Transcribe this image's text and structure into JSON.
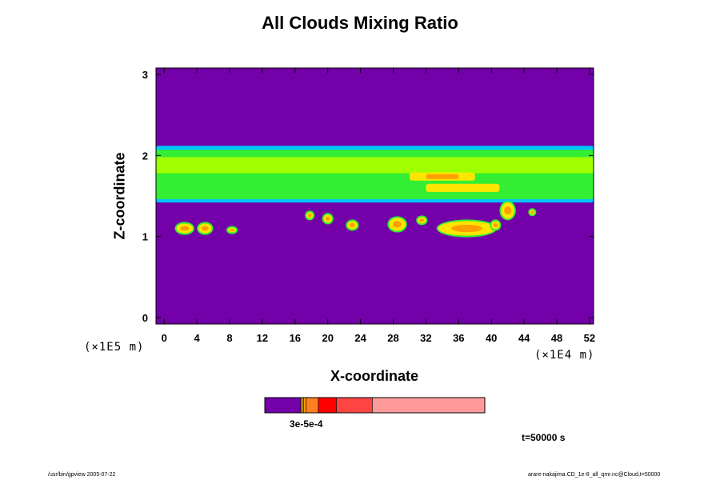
{
  "chart_data": {
    "type": "heatmap",
    "title": "All Clouds Mixing Ratio",
    "xlabel": "X-coordinate",
    "ylabel": "Z-coordinate",
    "x_unit": "(×1E4 m)",
    "y_unit": "(×1E5 m)",
    "xlim": [
      -1,
      52.5
    ],
    "ylim": [
      -0.08,
      3.08
    ],
    "x_ticks": [
      0,
      4,
      8,
      12,
      16,
      20,
      24,
      28,
      32,
      36,
      40,
      44,
      48,
      52
    ],
    "y_ticks": [
      0,
      1,
      2,
      3
    ],
    "grid": false,
    "background_color": "#7300a8",
    "cloud_layer": {
      "z_bottom": 1.45,
      "z_top": 2.1,
      "color": "#33ee33"
    },
    "regions": [
      {
        "level": "low",
        "color": "#00c4ff",
        "x": [
          -1,
          52.5
        ],
        "z": [
          1.42,
          2.12
        ]
      },
      {
        "level": "mid",
        "color": "#33ee33",
        "x": [
          -1,
          52.5
        ],
        "z": [
          1.46,
          2.07
        ]
      },
      {
        "level": "mid-high",
        "color": "#a0ff00",
        "x": [
          -1,
          52.5
        ],
        "z": [
          1.78,
          1.98
        ]
      },
      {
        "level": "high",
        "color": "#ffe600",
        "x": [
          30,
          38
        ],
        "z": [
          1.69,
          1.79
        ]
      },
      {
        "level": "high",
        "color": "#ffe600",
        "x": [
          32,
          41
        ],
        "z": [
          1.55,
          1.65
        ]
      },
      {
        "level": "highest",
        "color": "#ff9f00",
        "x": [
          32,
          36
        ],
        "z": [
          1.71,
          1.77
        ]
      }
    ],
    "blobs": [
      {
        "x": 2.5,
        "z": 1.1,
        "rx": 1.0,
        "rz": 0.06
      },
      {
        "x": 5.0,
        "z": 1.1,
        "rx": 0.8,
        "rz": 0.06
      },
      {
        "x": 8.3,
        "z": 1.08,
        "rx": 0.5,
        "rz": 0.03
      },
      {
        "x": 17.8,
        "z": 1.26,
        "rx": 0.4,
        "rz": 0.04
      },
      {
        "x": 20.0,
        "z": 1.22,
        "rx": 0.5,
        "rz": 0.05
      },
      {
        "x": 23.0,
        "z": 1.14,
        "rx": 0.6,
        "rz": 0.05
      },
      {
        "x": 28.5,
        "z": 1.15,
        "rx": 1.0,
        "rz": 0.08
      },
      {
        "x": 31.5,
        "z": 1.2,
        "rx": 0.5,
        "rz": 0.04
      },
      {
        "x": 37.0,
        "z": 1.1,
        "rx": 3.5,
        "rz": 0.09
      },
      {
        "x": 40.5,
        "z": 1.14,
        "rx": 0.5,
        "rz": 0.05
      },
      {
        "x": 42.0,
        "z": 1.32,
        "rx": 0.8,
        "rz": 0.1
      },
      {
        "x": 45.0,
        "z": 1.3,
        "rx": 0.3,
        "rz": 0.03
      }
    ],
    "colorbar": {
      "bands": [
        {
          "color": "#7300a8",
          "weight": 16.0
        },
        {
          "color": "#ff9f00",
          "weight": 0.7
        },
        {
          "color": "#ffe600",
          "weight": 0.6
        },
        {
          "color": "#ff9f00",
          "weight": 1.0
        },
        {
          "color": "#ff8020",
          "weight": 5.5
        },
        {
          "color": "#ff0000",
          "weight": 8.0
        },
        {
          "color": "#ff4444",
          "weight": 16.0
        },
        {
          "color": "#ff9a9a",
          "weight": 50.0
        }
      ],
      "label": "3e-5e-4"
    },
    "time_label": "t=50000 s",
    "footer_left": "/usr/bin/gpview 2005-07-22",
    "footer_right": "arare-nakajima CD_1e-8_all_qmr.nc@Cloud,t=50000"
  }
}
